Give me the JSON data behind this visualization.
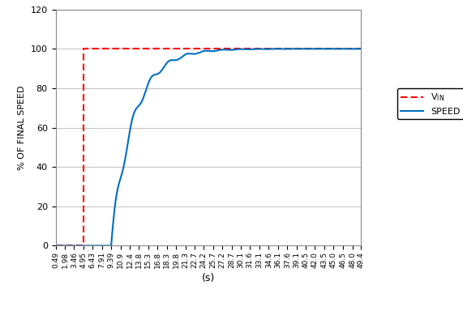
{
  "title": "",
  "xlabel": "(s)",
  "ylabel": "% OF FINAL SPEED",
  "vin_step_time": 4.95,
  "vin_before": 0,
  "vin_after": 100,
  "xlim_min": 0.49,
  "xlim_max": 49.4,
  "ylim_min": 0,
  "ylim_max": 120,
  "yticks": [
    0,
    20,
    40,
    60,
    80,
    100,
    120
  ],
  "xtick_labels": [
    "0.49",
    "1.98",
    "3.46",
    "4.95",
    "6.43",
    "7.91",
    "9.39",
    "10.9",
    "12.4",
    "13.8",
    "15.3",
    "16.8",
    "18.3",
    "19.8",
    "21.3",
    "22.7",
    "24.2",
    "25.7",
    "27.2",
    "28.7",
    "30.1",
    "31.6",
    "33.1",
    "34.6",
    "36.1",
    "37.6",
    "39.1",
    "40.5",
    "42.0",
    "43.5",
    "45.0",
    "46.5",
    "48.0",
    "49.4"
  ],
  "vin_color": "#FF0000",
  "speed_color": "#0070C0",
  "legend_vin_label": "V₁ₙ",
  "legend_speed_label": "SPEED",
  "background_color": "#FFFFFF",
  "grid_color": "#AAAAAA"
}
